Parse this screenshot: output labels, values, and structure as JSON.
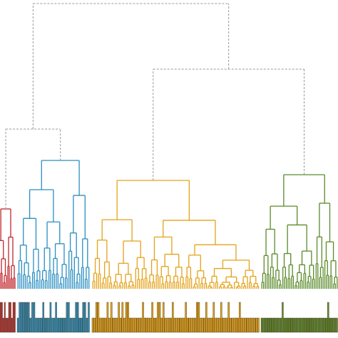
{
  "colors": {
    "red": "#c1272d",
    "blue": "#2a8fc0",
    "yellow": "#e3a21a",
    "green": "#5b8a2a",
    "dashed": "#9a9a9a",
    "background": "#ffffff"
  },
  "clusters": [
    {
      "key": "red",
      "leaf_count": 14
    },
    {
      "key": "blue",
      "leaf_count": 40
    },
    {
      "key": "yellow",
      "leaf_count": 90
    },
    {
      "key": "green",
      "leaf_count": 44
    }
  ],
  "linkage": {
    "root": {
      "children": [
        "left_group",
        "right_group"
      ],
      "height": 1.0
    },
    "left_group": {
      "children": [
        "red",
        "blue"
      ],
      "height": 0.56
    },
    "right_group": {
      "children": [
        "yellow",
        "green"
      ],
      "height": 0.77
    },
    "red_top": 0.28,
    "blue_top": 0.45,
    "yellow_top": 0.38,
    "green_top": 0.4
  },
  "track": {
    "present": true
  }
}
